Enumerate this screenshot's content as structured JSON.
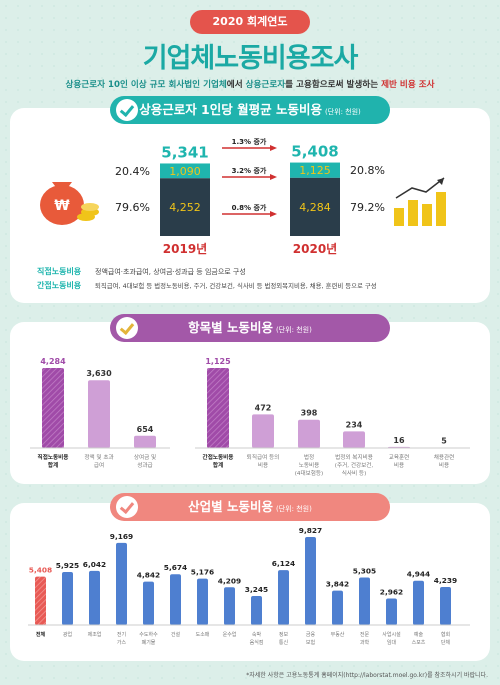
{
  "header": {
    "year_badge": "2020 회계연도",
    "title": "기업체노동비용조사",
    "subtitle_parts": [
      "상용근로자 10인 이상 규모 회사법인 기업체",
      "에서 ",
      "상용근로자",
      "를 고용함으로써 발생하는 ",
      "제반 비용 조사"
    ]
  },
  "section1": {
    "title": "상용근로자 1인당 월평균 노동비용",
    "unit": "(단위: 천원)",
    "chart_data": {
      "type": "bar",
      "categories": [
        "2019년",
        "2020년"
      ],
      "totals": [
        5341,
        5408
      ],
      "series": [
        {
          "name": "간접노동비용",
          "values": [
            1090,
            1125
          ],
          "pct": [
            "20.4%",
            "20.8%"
          ]
        },
        {
          "name": "직접노동비용",
          "values": [
            4252,
            4284
          ],
          "pct": [
            "79.6%",
            "79.2%"
          ]
        }
      ],
      "changes": [
        {
          "label": "1.3% 증가"
        },
        {
          "label": "3.2% 증가"
        },
        {
          "label": "0.8% 증가"
        }
      ]
    },
    "totals_text": [
      "5,341",
      "5,408"
    ],
    "values_text": [
      "1,090",
      "4,252",
      "1,125",
      "4,284"
    ],
    "legend": [
      {
        "term": "직접노동비용",
        "desc": "정액급여·초과급여, 상여금·성과급 등 임금으로 구성"
      },
      {
        "term": "간접노동비용",
        "desc": "퇴직급여, 4대보험 등 법정노동비용, 주거, 건강보건, 식사비 등 법정외복지비용, 채용, 훈련비 등으로 구성"
      }
    ],
    "colors": {
      "teal": "#1fb5ae",
      "dark": "#2a3d4a",
      "gold": "#f0c419",
      "red": "#d03030"
    }
  },
  "section2": {
    "title": "항목별 노동비용",
    "unit": "(단위: 천원)",
    "chart_data": [
      {
        "type": "bar",
        "categories": [
          "직접노동비용 합계",
          "정액 및 초과 급여",
          "상여금 및 성과급"
        ],
        "values": [
          4284,
          3630,
          654
        ],
        "labels": [
          "4,284",
          "3,630",
          "654"
        ],
        "cat_lines": [
          [
            "직접노동비용",
            "합계"
          ],
          [
            "정액 및 초과",
            "급여"
          ],
          [
            "상여금 및",
            "성과급"
          ]
        ]
      },
      {
        "type": "bar",
        "categories": [
          "간접노동비용 합계",
          "퇴직급여 등의 비용",
          "법정 노동비용 (4대보험등)",
          "법정외 복지비용 (주거, 건강보건, 식사비 등)",
          "교육훈련 비용",
          "채용관련 비용"
        ],
        "values": [
          1125,
          472,
          398,
          234,
          16,
          5
        ],
        "labels": [
          "1,125",
          "472",
          "398",
          "234",
          "16",
          "5"
        ],
        "cat_lines": [
          [
            "간접노동비용",
            "합계"
          ],
          [
            "퇴직급여 등의",
            "비용"
          ],
          [
            "법정",
            "노동비용",
            "(4대보험등)"
          ],
          [
            "법정외 복지비용",
            "(주거, 건강보건,",
            "식사비 등)"
          ],
          [
            "교육훈련",
            "비용"
          ],
          [
            "채용관련",
            "비용"
          ]
        ]
      }
    ],
    "colors": {
      "bar": "#cf9fd6",
      "total": "#a04ba8"
    }
  },
  "section3": {
    "title": "산업별 노동비용",
    "unit": "(단위: 천원)",
    "chart_data": {
      "type": "bar",
      "categories": [
        "전체",
        "광업",
        "제조업",
        "전기 가스",
        "수도하수 폐기물",
        "건설",
        "도소매",
        "운수업",
        "숙박 음식점",
        "정보 통신",
        "금융 보험",
        "부동산",
        "전문 과학",
        "사업시설 임대",
        "예술 스포츠",
        "협회 단체"
      ],
      "values": [
        5408,
        5925,
        6042,
        9169,
        4842,
        5674,
        5176,
        4209,
        3245,
        6124,
        9827,
        3842,
        5305,
        2962,
        4944,
        4239
      ],
      "labels": [
        "5,408",
        "5,925",
        "6,042",
        "9,169",
        "4,842",
        "5,674",
        "5,176",
        "4,209",
        "3,245",
        "6,124",
        "9,827",
        "3,842",
        "5,305",
        "2,962",
        "4,944",
        "4,239"
      ],
      "cat_lines": [
        [
          "전체"
        ],
        [
          "광업"
        ],
        [
          "제조업"
        ],
        [
          "전기",
          "가스"
        ],
        [
          "수도하수",
          "폐기물"
        ],
        [
          "건설"
        ],
        [
          "도소매"
        ],
        [
          "운수업"
        ],
        [
          "숙박",
          "음식점"
        ],
        [
          "정보",
          "통신"
        ],
        [
          "금융",
          "보험"
        ],
        [
          "부동산"
        ],
        [
          "전문",
          "과학"
        ],
        [
          "사업시설",
          "임대"
        ],
        [
          "예술",
          "스포츠"
        ],
        [
          "협회",
          "단체"
        ]
      ]
    },
    "colors": {
      "bar": "#4e7fd0",
      "total": "#e85a55"
    }
  },
  "footnote": "*자세한 사항은 고용노동통계 홈페이지(http://laborstat.moel.go.kr)를 참조하시기 바랍니다."
}
